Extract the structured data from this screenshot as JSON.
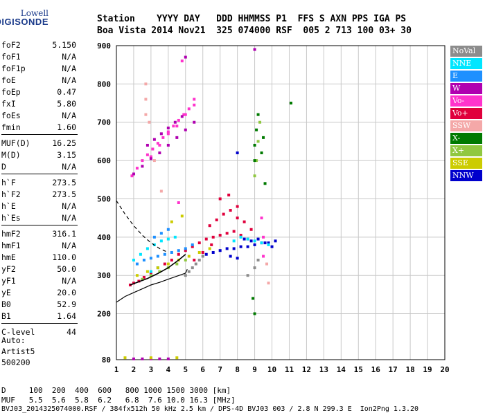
{
  "logo": {
    "line1": "Lowell",
    "line2": "DIGISONDE"
  },
  "header": {
    "row1": "Station    YYYY DAY   DDD HHMMSS P1  FFS S AXN PPS IGA PS",
    "row2": "Boa Vista 2014 Nov21  325 074000 RSF  005 2 713 100 03+ 30"
  },
  "params": [
    {
      "key": "foF2",
      "value": "5.150"
    },
    {
      "key": "foF1",
      "value": "N/A"
    },
    {
      "key": "foF1p",
      "value": "N/A"
    },
    {
      "key": "foE",
      "value": "N/A"
    },
    {
      "key": "foEp",
      "value": "0.47"
    },
    {
      "key": "fxI",
      "value": "5.80"
    },
    {
      "key": "foEs",
      "value": "N/A"
    },
    {
      "key": "fmin",
      "value": "1.60"
    },
    {
      "key": "MUF(D)",
      "value": "16.25"
    },
    {
      "key": "M(D)",
      "value": "3.15"
    },
    {
      "key": "D",
      "value": "N/A"
    },
    {
      "key": "h`F",
      "value": "273.5"
    },
    {
      "key": "h`F2",
      "value": "273.5"
    },
    {
      "key": "h`E",
      "value": "N/A"
    },
    {
      "key": "h`Es",
      "value": "N/A"
    },
    {
      "key": "hmF2",
      "value": "316.1"
    },
    {
      "key": "hmF1",
      "value": "N/A"
    },
    {
      "key": "hmE",
      "value": "110.0"
    },
    {
      "key": "yF2",
      "value": "50.0"
    },
    {
      "key": "yF1",
      "value": "N/A"
    },
    {
      "key": "yE",
      "value": "20.0"
    },
    {
      "key": "B0",
      "value": "52.9"
    },
    {
      "key": "B1",
      "value": "1.64"
    },
    {
      "key": "C-level",
      "value": "44"
    }
  ],
  "auto": {
    "line1": "Auto:",
    "line2": "Artist5",
    "line3": "500200"
  },
  "legend": [
    {
      "label": "NoVal",
      "color": "#8c8c8c"
    },
    {
      "label": "NNE",
      "color": "#00e6ff"
    },
    {
      "label": "E",
      "color": "#1e90ff"
    },
    {
      "label": "W",
      "color": "#b000b0"
    },
    {
      "label": "Vo-",
      "color": "#ff33cc"
    },
    {
      "label": "Vo+",
      "color": "#e0003c"
    },
    {
      "label": "SSW",
      "color": "#f4a8a8"
    },
    {
      "label": "X-",
      "color": "#007a00"
    },
    {
      "label": "X+",
      "color": "#90c840"
    },
    {
      "label": "SSE",
      "color": "#cccc00"
    },
    {
      "label": "NNW",
      "color": "#0000cc"
    }
  ],
  "chart_data": {
    "type": "scatter",
    "title": "",
    "xlabel": "",
    "ylabel": "",
    "xlim": [
      1,
      20
    ],
    "ylim": [
      80,
      900
    ],
    "xticks": [
      "1",
      "2",
      "3",
      "4",
      "5",
      "6",
      "7",
      "8",
      "9",
      "10",
      "11",
      "12",
      "13",
      "14",
      "15",
      "16",
      "17",
      "18",
      "19",
      "20"
    ],
    "yticks": [
      "80",
      "200",
      "300",
      "400",
      "500",
      "600",
      "700",
      "800",
      "900"
    ],
    "grid": true,
    "series": [
      {
        "name": "Vo+",
        "color": "#e0003c",
        "x": [
          1.8,
          2.0,
          2.3,
          2.6,
          3.0,
          3.4,
          3.8,
          4.2,
          4.6,
          5.0,
          5.4,
          5.8,
          6.2,
          6.6,
          7.0,
          7.4,
          7.8,
          8.2,
          8.6,
          6.4,
          6.8,
          7.2,
          7.6,
          8.0,
          8.4,
          8.8,
          7.0,
          7.5,
          8.0,
          5.5,
          6.0,
          6.5
        ],
        "y": [
          275,
          280,
          285,
          295,
          305,
          320,
          330,
          340,
          355,
          365,
          375,
          385,
          395,
          400,
          405,
          410,
          415,
          405,
          395,
          430,
          445,
          460,
          470,
          450,
          440,
          420,
          500,
          510,
          480,
          340,
          360,
          380
        ]
      },
      {
        "name": "NNW",
        "color": "#0000cc",
        "x": [
          6.2,
          6.6,
          7.0,
          7.4,
          7.8,
          8.2,
          8.6,
          9.0,
          9.4,
          9.8,
          10.2,
          8.4,
          8.8,
          9.2,
          9.6,
          10.0,
          7.6,
          8.0,
          8.0
        ],
        "y": [
          355,
          360,
          365,
          370,
          370,
          375,
          375,
          380,
          385,
          385,
          390,
          395,
          390,
          395,
          385,
          375,
          350,
          345,
          620
        ]
      },
      {
        "name": "NNE",
        "color": "#00e6ff",
        "x": [
          2.0,
          2.4,
          2.8,
          3.2,
          3.6,
          4.0,
          4.4,
          7.8,
          8.2,
          8.6,
          9.0,
          9.4,
          9.8,
          3.0,
          3.4
        ],
        "y": [
          340,
          355,
          370,
          380,
          390,
          395,
          400,
          390,
          400,
          395,
          390,
          385,
          380,
          310,
          320
        ]
      },
      {
        "name": "E",
        "color": "#1e90ff",
        "x": [
          2.2,
          2.6,
          3.0,
          3.4,
          3.8,
          4.2,
          4.6,
          5.0,
          5.4,
          3.2,
          3.6,
          4.0
        ],
        "y": [
          330,
          340,
          345,
          350,
          355,
          360,
          365,
          370,
          380,
          400,
          410,
          420
        ]
      },
      {
        "name": "Vo-",
        "color": "#ff33cc",
        "x": [
          1.9,
          2.2,
          2.5,
          2.8,
          3.1,
          3.4,
          3.7,
          4.0,
          4.3,
          4.6,
          4.9,
          5.2,
          5.5,
          3.0,
          3.5,
          4.0,
          4.5,
          5.0,
          5.5,
          9.4,
          9.5,
          9.5,
          4.6,
          4.8
        ],
        "y": [
          560,
          580,
          600,
          615,
          630,
          645,
          660,
          675,
          690,
          705,
          720,
          735,
          745,
          610,
          640,
          670,
          690,
          720,
          760,
          450,
          400,
          350,
          490,
          860
        ]
      },
      {
        "name": "W",
        "color": "#b000b0",
        "x": [
          2.0,
          2.5,
          3.0,
          3.5,
          4.0,
          4.5,
          5.0,
          5.5,
          2.8,
          3.2,
          3.6,
          4.0,
          4.4,
          4.8,
          2.0,
          2.5,
          3.0,
          3.5,
          4.0,
          9.0,
          5.0
        ],
        "y": [
          565,
          585,
          605,
          620,
          640,
          660,
          680,
          700,
          640,
          655,
          670,
          685,
          700,
          715,
          82,
          82,
          82,
          82,
          82,
          890,
          870
        ]
      },
      {
        "name": "SSE",
        "color": "#cccc00",
        "x": [
          2.2,
          2.8,
          3.4,
          4.0,
          4.6,
          5.2,
          5.8,
          6.4,
          4.2,
          4.8,
          1.5,
          3.0,
          4.5
        ],
        "y": [
          300,
          310,
          320,
          330,
          340,
          350,
          360,
          370,
          440,
          455,
          85,
          85,
          85
        ]
      },
      {
        "name": "X+",
        "color": "#90c840",
        "x": [
          2.5,
          3.0,
          3.5,
          4.0,
          4.5,
          5.0,
          9.0,
          9.1,
          9.2,
          9.3
        ],
        "y": [
          290,
          300,
          310,
          320,
          330,
          340,
          560,
          600,
          650,
          700
        ]
      },
      {
        "name": "X-",
        "color": "#007a00",
        "x": [
          9.0,
          9.0,
          9.1,
          9.2,
          9.4,
          9.5,
          9.6,
          11.1,
          8.9,
          9.0
        ],
        "y": [
          600,
          640,
          680,
          720,
          620,
          660,
          540,
          750,
          240,
          200
        ]
      },
      {
        "name": "SSW",
        "color": "#f4a8a8",
        "x": [
          2.7,
          2.7,
          2.7,
          2.9,
          3.2,
          3.6,
          9.7,
          9.8
        ],
        "y": [
          720,
          760,
          800,
          700,
          600,
          520,
          330,
          280
        ]
      },
      {
        "name": "NoVal",
        "color": "#8c8c8c",
        "x": [
          5.0,
          5.2,
          5.4,
          5.6,
          5.8,
          6.0,
          8.6,
          9.0,
          9.2
        ],
        "y": [
          300,
          310,
          320,
          330,
          340,
          350,
          300,
          320,
          340
        ]
      }
    ],
    "profile_solid": {
      "x": [
        1,
        1.5,
        2,
        2.5,
        3,
        3.5,
        4,
        4.5,
        5,
        5.1
      ],
      "y": [
        230,
        245,
        255,
        265,
        275,
        282,
        290,
        298,
        306,
        316
      ]
    },
    "profile_dashed": {
      "x": [
        1,
        1.5,
        2,
        2.5,
        3,
        3.5,
        4
      ],
      "y": [
        495,
        460,
        430,
        405,
        385,
        370,
        360
      ]
    },
    "trace_black": {
      "x": [
        1.8,
        2.2,
        2.8,
        3.4,
        4.0,
        4.6,
        5.0
      ],
      "y": [
        275,
        282,
        292,
        305,
        320,
        340,
        355
      ]
    }
  },
  "bottom": {
    "d_row": "D     100  200  400  600   800 1000 1500 3000 [km]",
    "muf_row": "MUF   5.5  5.6  5.8  6.2   6.8  7.6 10.0 16.3 [MHz]",
    "footer": "BVJ03_2014325074000.RSF / 384fx512h 50 kHz 2.5 km / DPS-4D BVJ03 003 / 2.8 N 299.3 E  Ion2Png 1.3.20"
  }
}
